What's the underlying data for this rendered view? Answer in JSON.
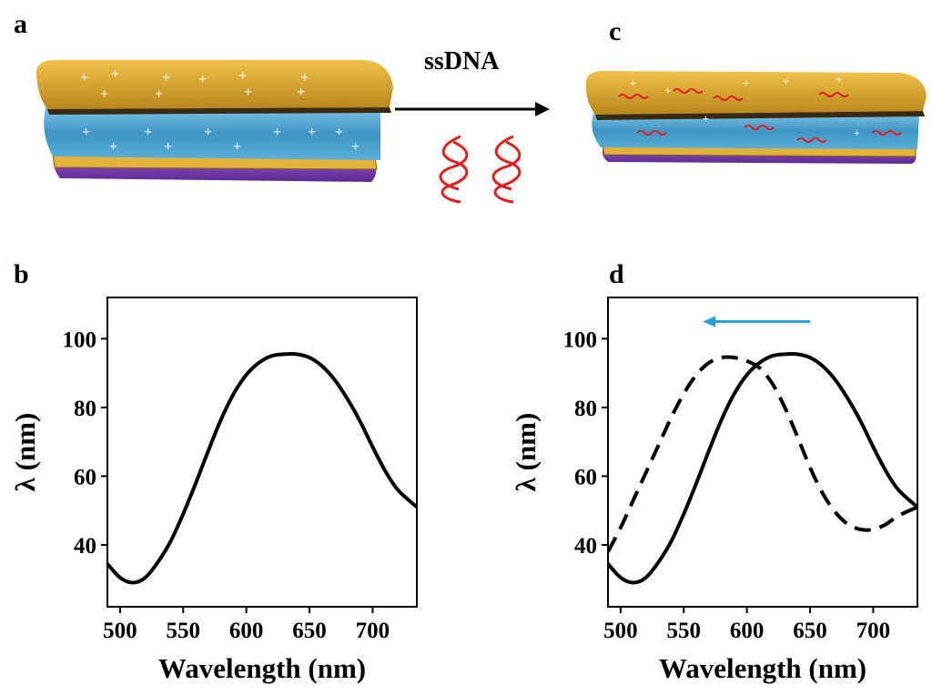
{
  "panels": {
    "a": "a",
    "b": "b",
    "c": "c",
    "d": "d"
  },
  "schematic": {
    "arrow_label": "ssDNA",
    "colors": {
      "gold": "#d9a928",
      "gold_dark": "#a8791a",
      "blue_layer": "#4fa3cf",
      "purple_base": "#7b3fb0",
      "dna_red": "#e0201e",
      "plus_sign": "#e8f4ff"
    }
  },
  "chart_data": [
    {
      "panel": "b",
      "type": "line",
      "xlabel": "Wavelength (nm)",
      "ylabel": "λ (nm)",
      "xlim": [
        490,
        735
      ],
      "ylim": [
        22,
        112
      ],
      "xticks": [
        500,
        550,
        600,
        650,
        700
      ],
      "yticks": [
        40,
        60,
        80,
        100
      ],
      "series": [
        {
          "style": "solid",
          "x": [
            490,
            500,
            510,
            520,
            530,
            540,
            550,
            560,
            570,
            580,
            590,
            600,
            610,
            620,
            630,
            640,
            650,
            660,
            670,
            680,
            690,
            700,
            710,
            720,
            735
          ],
          "y": [
            34.5,
            30.5,
            29,
            30.5,
            35,
            41,
            49,
            58,
            67.5,
            76.5,
            84,
            89.5,
            93,
            95,
            95.5,
            95.5,
            94.5,
            92,
            88,
            82.5,
            76,
            68.5,
            61.5,
            56,
            51
          ]
        }
      ]
    },
    {
      "panel": "d",
      "type": "line",
      "xlabel": "Wavelength (nm)",
      "ylabel": "λ (nm)",
      "xlim": [
        490,
        735
      ],
      "ylim": [
        22,
        112
      ],
      "xticks": [
        500,
        550,
        600,
        650,
        700
      ],
      "yticks": [
        40,
        60,
        80,
        100
      ],
      "annotation": {
        "type": "arrow",
        "direction": "left",
        "color": "#2a9fd8",
        "from_x": 650,
        "to_x": 565,
        "y": 105
      },
      "series": [
        {
          "style": "solid",
          "x": [
            490,
            500,
            510,
            520,
            530,
            540,
            550,
            560,
            570,
            580,
            590,
            600,
            610,
            620,
            630,
            640,
            650,
            660,
            670,
            680,
            690,
            700,
            710,
            720,
            735
          ],
          "y": [
            34.5,
            30.5,
            29,
            30.5,
            35,
            41,
            49,
            58,
            67.5,
            76.5,
            84,
            89.5,
            93,
            95,
            95.5,
            95.5,
            94.5,
            92,
            88,
            82.5,
            76,
            68.5,
            61.5,
            56,
            51
          ]
        },
        {
          "style": "dashed",
          "x": [
            490,
            500,
            510,
            520,
            530,
            540,
            550,
            560,
            570,
            580,
            590,
            600,
            610,
            620,
            630,
            640,
            650,
            660,
            670,
            680,
            690,
            700,
            710,
            720,
            735
          ],
          "y": [
            38,
            45,
            53,
            61,
            69,
            77,
            84,
            89.5,
            93,
            94.5,
            94.5,
            93.5,
            91.5,
            87,
            80,
            71.5,
            62.5,
            55,
            49.5,
            46,
            44.5,
            44.5,
            46,
            48.5,
            51
          ]
        }
      ]
    }
  ]
}
